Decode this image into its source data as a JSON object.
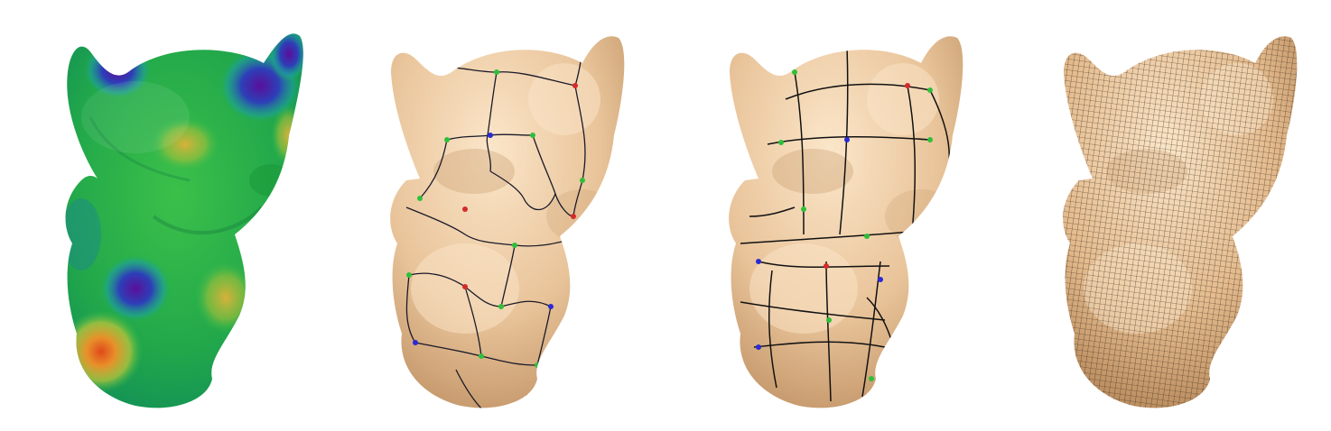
{
  "figure": {
    "panels": [
      {
        "id": "scalar-field",
        "style": "rainbow color map"
      },
      {
        "id": "initial-partition",
        "style": "wiggly patch boundaries with colored singular points"
      },
      {
        "id": "smoothed-layout",
        "style": "smooth quad layout curves with colored singular points"
      },
      {
        "id": "quad-mesh",
        "style": "dense quadrilateral remesh"
      }
    ],
    "colors": {
      "skin": "#e9c49a",
      "skin_shadow": "#c79a6c",
      "skin_highlight": "#f8e2c6",
      "line": "#1a1a1a",
      "node_red": "#d42a2a",
      "node_green": "#2fbf3a",
      "node_blue": "#2a2ad4",
      "field_low": "#6a1aa8",
      "field_mid": "#1fb34a",
      "field_high": "#d8782a"
    }
  }
}
